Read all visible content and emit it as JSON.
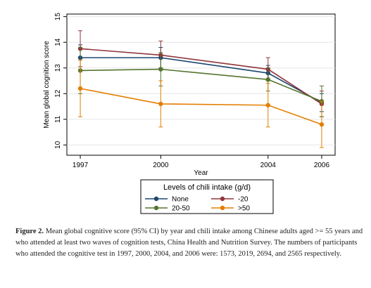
{
  "chart_data": {
    "type": "line",
    "title": "",
    "xlabel": "Year",
    "ylabel": "Mean global cognition score",
    "x": [
      1997,
      2000,
      2004,
      2006
    ],
    "x_ticks": [
      "1997",
      "2000",
      "2004",
      "2006"
    ],
    "ylim": [
      9.6,
      15.1
    ],
    "y_ticks": [
      "10",
      "11",
      "12",
      "13",
      "14",
      "15"
    ],
    "grid": true,
    "error_bars": "95% CI",
    "legend_title": "Levels of chili intake (g/d)",
    "legend_position": "bottom",
    "series": [
      {
        "name": "None",
        "color": "#1a476f",
        "values": [
          13.4,
          13.4,
          12.8,
          11.65
        ],
        "ci_low": [
          12.9,
          13.0,
          12.5,
          11.3
        ],
        "ci_high": [
          13.9,
          13.8,
          13.1,
          12.0
        ]
      },
      {
        "name": "-20",
        "color": "#90353b",
        "values": [
          13.75,
          13.5,
          12.95,
          11.6
        ],
        "ci_low": [
          13.05,
          12.95,
          12.5,
          11.1
        ],
        "ci_high": [
          14.45,
          14.05,
          13.4,
          12.1
        ]
      },
      {
        "name": "20-50",
        "color": "#55752f",
        "values": [
          12.9,
          12.95,
          12.55,
          11.7
        ],
        "ci_low": [
          12.0,
          12.3,
          12.1,
          11.1
        ],
        "ci_high": [
          13.8,
          13.6,
          13.0,
          12.3
        ]
      },
      {
        "name": ">50",
        "color": "#e37e00",
        "values": [
          12.2,
          11.6,
          11.55,
          10.8
        ],
        "ci_low": [
          11.1,
          10.7,
          10.7,
          9.9
        ],
        "ci_high": [
          13.3,
          12.5,
          12.4,
          11.7
        ]
      }
    ]
  },
  "caption": {
    "label": "Figure 2.",
    "text": " Mean global cognitive score (95% CI) by year and chili intake among Chinese adults aged >= 55 years and who attended at least two waves of cognition tests, China Health and Nutrition Survey. The numbers of participants who attended the cognitive test in 1997, 2000, 2004, and 2006 were: 1573, 2019, 2694, and 2565 respectively."
  }
}
